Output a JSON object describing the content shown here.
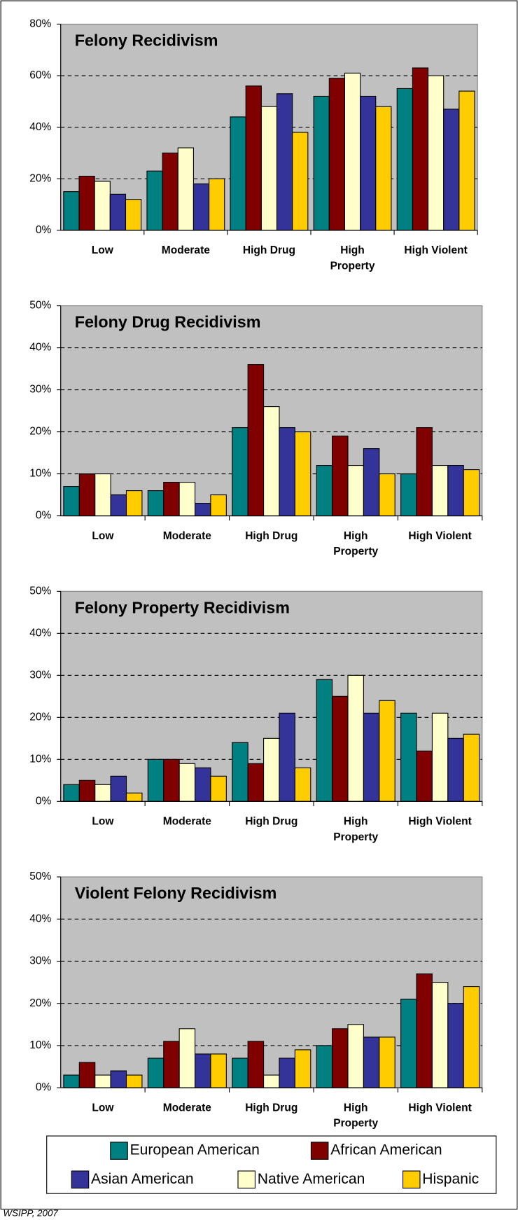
{
  "chart_data": [
    {
      "type": "bar",
      "title": "Felony Recidivism",
      "categories": [
        "Low",
        "Moderate",
        "High Drug",
        "High\nProperty",
        "High Violent"
      ],
      "series": [
        {
          "name": "European American",
          "color": "#008080",
          "values": [
            15,
            23,
            44,
            52,
            55
          ]
        },
        {
          "name": "African American",
          "color": "#800000",
          "values": [
            21,
            30,
            56,
            59,
            63
          ]
        },
        {
          "name": "Native American",
          "color": "#ffffcc",
          "values": [
            19,
            32,
            48,
            61,
            60
          ]
        },
        {
          "name": "Asian American",
          "color": "#333399",
          "values": [
            14,
            18,
            53,
            52,
            47
          ]
        },
        {
          "name": "Hispanic",
          "color": "#ffcc00",
          "values": [
            12,
            20,
            38,
            48,
            54
          ]
        }
      ],
      "ylim": [
        0,
        80
      ],
      "yticks": [
        {
          "value": 0,
          "label": "0%"
        },
        {
          "value": 20,
          "label": "20%"
        },
        {
          "value": 40,
          "label": "40%"
        },
        {
          "value": 60,
          "label": "60%"
        },
        {
          "value": 80,
          "label": "80%"
        }
      ],
      "grid": true
    },
    {
      "type": "bar",
      "title": "Felony Drug Recidivism",
      "categories": [
        "Low",
        "Moderate",
        "High Drug",
        "High\nProperty",
        "High Violent"
      ],
      "series": [
        {
          "name": "European American",
          "color": "#008080",
          "values": [
            7,
            6,
            21,
            12,
            10
          ]
        },
        {
          "name": "African American",
          "color": "#800000",
          "values": [
            10,
            8,
            36,
            19,
            21
          ]
        },
        {
          "name": "Native American",
          "color": "#ffffcc",
          "values": [
            10,
            8,
            26,
            12,
            12
          ]
        },
        {
          "name": "Asian American",
          "color": "#333399",
          "values": [
            5,
            3,
            21,
            16,
            12
          ]
        },
        {
          "name": "Hispanic",
          "color": "#ffcc00",
          "values": [
            6,
            5,
            20,
            10,
            11
          ]
        }
      ],
      "ylim": [
        0,
        50
      ],
      "yticks": [
        {
          "value": 0,
          "label": "0%"
        },
        {
          "value": 10,
          "label": "10%"
        },
        {
          "value": 20,
          "label": "20%"
        },
        {
          "value": 30,
          "label": "30%"
        },
        {
          "value": 40,
          "label": "40%"
        },
        {
          "value": 50,
          "label": "50%"
        }
      ],
      "grid": true
    },
    {
      "type": "bar",
      "title": "Felony Property Recidivism",
      "categories": [
        "Low",
        "Moderate",
        "High Drug",
        "High\nProperty",
        "High Violent"
      ],
      "series": [
        {
          "name": "European American",
          "color": "#008080",
          "values": [
            4,
            10,
            14,
            29,
            21
          ]
        },
        {
          "name": "African American",
          "color": "#800000",
          "values": [
            5,
            10,
            9,
            25,
            12
          ]
        },
        {
          "name": "Native American",
          "color": "#ffffcc",
          "values": [
            4,
            9,
            15,
            30,
            21
          ]
        },
        {
          "name": "Asian American",
          "color": "#333399",
          "values": [
            6,
            8,
            21,
            21,
            15
          ]
        },
        {
          "name": "Hispanic",
          "color": "#ffcc00",
          "values": [
            2,
            6,
            8,
            24,
            16
          ]
        }
      ],
      "ylim": [
        0,
        50
      ],
      "yticks": [
        {
          "value": 0,
          "label": "0%"
        },
        {
          "value": 10,
          "label": "10%"
        },
        {
          "value": 20,
          "label": "20%"
        },
        {
          "value": 30,
          "label": "30%"
        },
        {
          "value": 40,
          "label": "40%"
        },
        {
          "value": 50,
          "label": "50%"
        }
      ],
      "grid": true
    },
    {
      "type": "bar",
      "title": "Violent Felony Recidivism",
      "categories": [
        "Low",
        "Moderate",
        "High Drug",
        "High\nProperty",
        "High Violent"
      ],
      "series": [
        {
          "name": "European American",
          "color": "#008080",
          "values": [
            3,
            7,
            7,
            10,
            21
          ]
        },
        {
          "name": "African American",
          "color": "#800000",
          "values": [
            6,
            11,
            11,
            14,
            27
          ]
        },
        {
          "name": "Native American",
          "color": "#ffffcc",
          "values": [
            3,
            14,
            3,
            15,
            25
          ]
        },
        {
          "name": "Asian American",
          "color": "#333399",
          "values": [
            4,
            8,
            7,
            12,
            20
          ]
        },
        {
          "name": "Hispanic",
          "color": "#ffcc00",
          "values": [
            3,
            8,
            9,
            12,
            24
          ]
        }
      ],
      "ylim": [
        0,
        50
      ],
      "yticks": [
        {
          "value": 0,
          "label": "0%"
        },
        {
          "value": 10,
          "label": "10%"
        },
        {
          "value": 20,
          "label": "20%"
        },
        {
          "value": 30,
          "label": "30%"
        },
        {
          "value": 40,
          "label": "40%"
        },
        {
          "value": 50,
          "label": "50%"
        }
      ],
      "grid": true
    }
  ],
  "source": "WSIPP, 2007"
}
